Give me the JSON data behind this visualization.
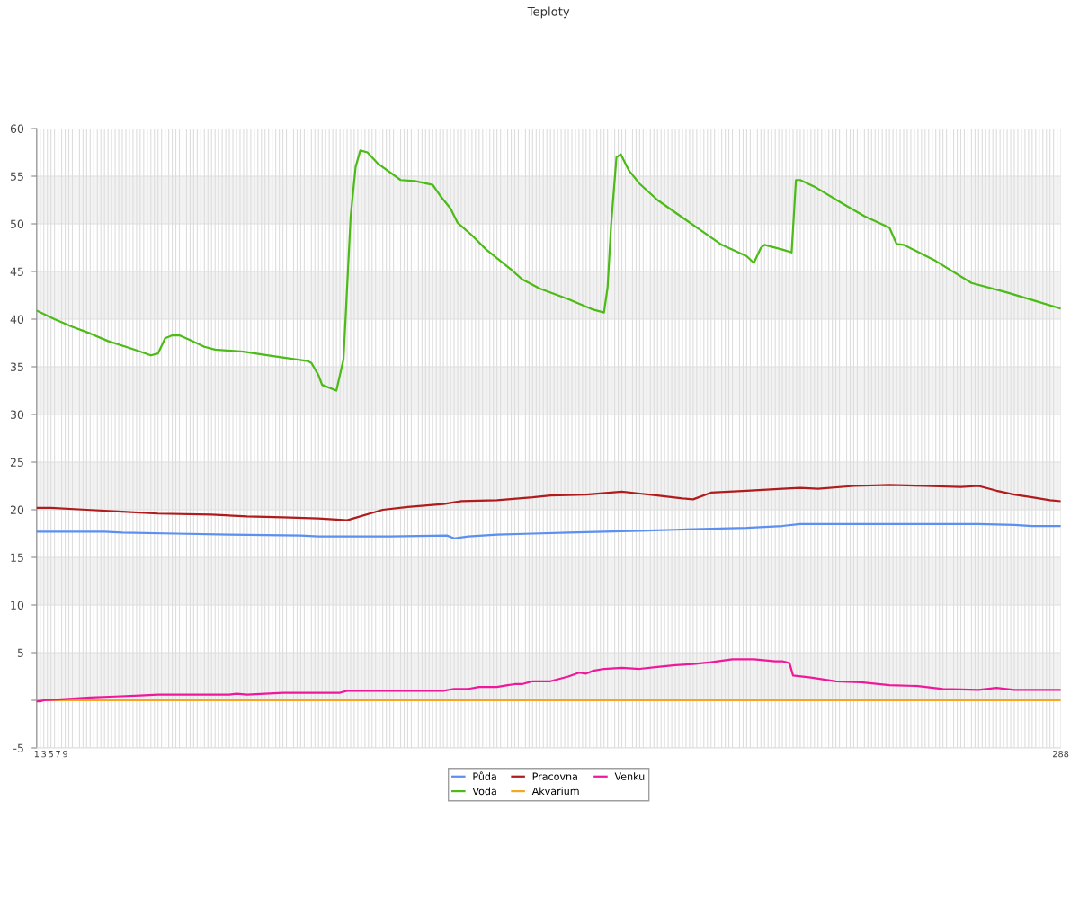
{
  "chart_data": {
    "type": "line",
    "title": "Teploty",
    "xlim": [
      1,
      288
    ],
    "xticks": [
      1,
      {
        "value": 2,
        "label": null
      },
      3,
      {
        "value": 4,
        "label": null
      },
      5,
      {
        "value": 6,
        "label": null
      },
      7,
      {
        "value": 8,
        "label": null
      },
      9,
      {
        "value": 10,
        "label": null
      },
      {
        "value": 11,
        "label": null
      },
      {
        "value": 12,
        "label": null
      },
      {
        "value": 13,
        "label": null
      },
      {
        "value": 14,
        "label": null
      },
      {
        "value": 15,
        "label": null
      },
      {
        "value": 16,
        "label": null
      },
      {
        "value": 17,
        "label": null
      },
      {
        "value": 18,
        "label": null
      },
      {
        "value": 19,
        "label": null
      },
      {
        "value": 20,
        "label": null
      },
      {
        "value": 21,
        "label": null
      },
      {
        "value": 22,
        "label": null
      },
      {
        "value": 23,
        "label": null
      },
      {
        "value": 24,
        "label": null
      },
      {
        "value": 25,
        "label": null
      },
      {
        "value": 26,
        "label": null
      },
      {
        "value": 27,
        "label": null
      },
      {
        "value": 28,
        "label": null
      },
      {
        "value": 29,
        "label": null
      },
      {
        "value": 30,
        "label": null
      },
      {
        "value": 31,
        "label": null
      },
      {
        "value": 32,
        "label": null
      },
      {
        "value": 33,
        "label": null
      },
      {
        "value": 34,
        "label": null
      },
      {
        "value": 35,
        "label": null
      },
      {
        "value": 36,
        "label": null
      },
      {
        "value": 37,
        "label": null
      },
      {
        "value": 38,
        "label": null
      },
      {
        "value": 39,
        "label": null
      },
      {
        "value": 40,
        "label": null
      },
      {
        "value": 41,
        "label": null
      },
      {
        "value": 42,
        "label": null
      },
      {
        "value": 43,
        "label": null
      },
      {
        "value": 44,
        "label": null
      },
      {
        "value": 45,
        "label": null
      },
      {
        "value": 46,
        "label": null
      },
      {
        "value": 47,
        "label": null
      },
      {
        "value": 48,
        "label": null
      },
      {
        "value": 49,
        "label": null
      },
      {
        "value": 50,
        "label": null
      },
      {
        "value": 51,
        "label": null
      },
      {
        "value": 52,
        "label": null
      },
      {
        "value": 53,
        "label": null
      },
      {
        "value": 54,
        "label": null
      },
      {
        "value": 55,
        "label": null
      },
      {
        "value": 56,
        "label": null
      },
      {
        "value": 57,
        "label": null
      },
      {
        "value": 58,
        "label": null
      },
      {
        "value": 59,
        "label": null
      },
      {
        "value": 60,
        "label": null
      },
      {
        "value": 61,
        "label": null
      },
      {
        "value": 62,
        "label": null
      },
      {
        "value": 63,
        "label": null
      },
      {
        "value": 64,
        "label": null
      },
      {
        "value": 65,
        "label": null
      },
      {
        "value": 66,
        "label": null
      },
      {
        "value": 67,
        "label": null
      },
      {
        "value": 68,
        "label": null
      },
      {
        "value": 69,
        "label": null
      },
      {
        "value": 70,
        "label": null
      },
      {
        "value": 71,
        "label": null
      },
      {
        "value": 72,
        "label": null
      },
      {
        "value": 73,
        "label": null
      },
      {
        "value": 74,
        "label": null
      },
      {
        "value": 75,
        "label": null
      },
      {
        "value": 76,
        "label": null
      },
      {
        "value": 77,
        "label": null
      },
      {
        "value": 78,
        "label": null
      },
      {
        "value": 79,
        "label": null
      },
      {
        "value": 80,
        "label": null
      },
      {
        "value": 81,
        "label": null
      },
      {
        "value": 82,
        "label": null
      },
      {
        "value": 83,
        "label": null
      },
      {
        "value": 84,
        "label": null
      },
      {
        "value": 85,
        "label": null
      },
      {
        "value": 86,
        "label": null
      },
      {
        "value": 87,
        "label": null
      },
      {
        "value": 88,
        "label": null
      },
      {
        "value": 89,
        "label": null
      },
      {
        "value": 90,
        "label": null
      },
      {
        "value": 91,
        "label": null
      },
      {
        "value": 92,
        "label": null
      },
      {
        "value": 93,
        "label": null
      },
      {
        "value": 94,
        "label": null
      },
      {
        "value": 95,
        "label": null
      },
      {
        "value": 96,
        "label": null
      },
      {
        "value": 97,
        "label": null
      },
      {
        "value": 98,
        "label": null
      },
      {
        "value": 99,
        "label": null
      },
      {
        "value": 100,
        "label": null
      },
      {
        "value": 101,
        "label": null
      },
      {
        "value": 102,
        "label": null
      },
      {
        "value": 103,
        "label": null
      },
      {
        "value": 104,
        "label": null
      },
      {
        "value": 105,
        "label": null
      },
      {
        "value": 106,
        "label": null
      },
      {
        "value": 107,
        "label": null
      },
      {
        "value": 108,
        "label": null
      },
      {
        "value": 109,
        "label": null
      },
      {
        "value": 110,
        "label": null
      },
      {
        "value": 111,
        "label": null
      },
      {
        "value": 112,
        "label": null
      },
      {
        "value": 113,
        "label": null
      },
      {
        "value": 114,
        "label": null
      },
      {
        "value": 115,
        "label": null
      },
      {
        "value": 116,
        "label": null
      },
      {
        "value": 117,
        "label": null
      },
      {
        "value": 118,
        "label": null
      },
      {
        "value": 119,
        "label": null
      },
      {
        "value": 120,
        "label": null
      },
      {
        "value": 121,
        "label": null
      },
      {
        "value": 122,
        "label": null
      },
      {
        "value": 123,
        "label": null
      },
      {
        "value": 124,
        "label": null
      },
      {
        "value": 125,
        "label": null
      },
      {
        "value": 126,
        "label": null
      },
      {
        "value": 127,
        "label": null
      },
      {
        "value": 128,
        "label": null
      },
      {
        "value": 129,
        "label": null
      },
      {
        "value": 130,
        "label": null
      },
      {
        "value": 131,
        "label": null
      },
      {
        "value": 132,
        "label": null
      },
      {
        "value": 133,
        "label": null
      },
      {
        "value": 134,
        "label": null
      },
      {
        "value": 135,
        "label": null
      },
      {
        "value": 136,
        "label": null
      },
      {
        "value": 137,
        "label": null
      },
      {
        "value": 138,
        "label": null
      },
      {
        "value": 139,
        "label": null
      },
      {
        "value": 140,
        "label": null
      },
      {
        "value": 141,
        "label": null
      },
      {
        "value": 142,
        "label": null
      },
      {
        "value": 143,
        "label": null
      },
      {
        "value": 144,
        "label": null
      },
      {
        "value": 145,
        "label": null
      },
      {
        "value": 146,
        "label": null
      },
      {
        "value": 147,
        "label": null
      },
      {
        "value": 148,
        "label": null
      },
      {
        "value": 149,
        "label": null
      },
      {
        "value": 150,
        "label": null
      },
      {
        "value": 151,
        "label": null
      },
      {
        "value": 152,
        "label": null
      },
      {
        "value": 153,
        "label": null
      },
      {
        "value": 154,
        "label": null
      },
      {
        "value": 155,
        "label": null
      },
      {
        "value": 156,
        "label": null
      },
      {
        "value": 157,
        "label": null
      },
      {
        "value": 158,
        "label": null
      },
      {
        "value": 159,
        "label": null
      },
      {
        "value": 160,
        "label": null
      },
      {
        "value": 161,
        "label": null
      },
      {
        "value": 162,
        "label": null
      },
      {
        "value": 163,
        "label": null
      },
      {
        "value": 164,
        "label": null
      },
      {
        "value": 165,
        "label": null
      },
      {
        "value": 166,
        "label": null
      },
      {
        "value": 167,
        "label": null
      },
      {
        "value": 168,
        "label": null
      },
      {
        "value": 169,
        "label": null
      },
      {
        "value": 170,
        "label": null
      },
      {
        "value": 171,
        "label": null
      },
      {
        "value": 172,
        "label": null
      },
      {
        "value": 173,
        "label": null
      },
      {
        "value": 174,
        "label": null
      },
      {
        "value": 175,
        "label": null
      },
      {
        "value": 176,
        "label": null
      },
      {
        "value": 177,
        "label": null
      },
      {
        "value": 178,
        "label": null
      },
      {
        "value": 179,
        "label": null
      },
      {
        "value": 180,
        "label": null
      },
      {
        "value": 181,
        "label": null
      },
      {
        "value": 182,
        "label": null
      },
      {
        "value": 183,
        "label": null
      },
      {
        "value": 184,
        "label": null
      },
      {
        "value": 185,
        "label": null
      },
      {
        "value": 186,
        "label": null
      },
      {
        "value": 187,
        "label": null
      },
      {
        "value": 188,
        "label": null
      },
      {
        "value": 189,
        "label": null
      },
      {
        "value": 190,
        "label": null
      },
      {
        "value": 191,
        "label": null
      },
      {
        "value": 192,
        "label": null
      },
      {
        "value": 193,
        "label": null
      },
      {
        "value": 194,
        "label": null
      },
      {
        "value": 195,
        "label": null
      },
      {
        "value": 196,
        "label": null
      },
      {
        "value": 197,
        "label": null
      },
      {
        "value": 198,
        "label": null
      },
      {
        "value": 199,
        "label": null
      },
      {
        "value": 200,
        "label": null
      },
      {
        "value": 201,
        "label": null
      },
      {
        "value": 202,
        "label": null
      },
      {
        "value": 203,
        "label": null
      },
      {
        "value": 204,
        "label": null
      },
      {
        "value": 205,
        "label": null
      },
      {
        "value": 206,
        "label": null
      },
      {
        "value": 207,
        "label": null
      },
      {
        "value": 208,
        "label": null
      },
      {
        "value": 209,
        "label": null
      },
      {
        "value": 210,
        "label": null
      },
      {
        "value": 211,
        "label": null
      },
      {
        "value": 212,
        "label": null
      },
      {
        "value": 213,
        "label": null
      },
      {
        "value": 214,
        "label": null
      },
      {
        "value": 215,
        "label": null
      },
      {
        "value": 216,
        "label": null
      },
      {
        "value": 217,
        "label": null
      },
      {
        "value": 218,
        "label": null
      },
      {
        "value": 219,
        "label": null
      },
      {
        "value": 220,
        "label": null
      },
      {
        "value": 221,
        "label": null
      },
      {
        "value": 222,
        "label": null
      },
      {
        "value": 223,
        "label": null
      },
      {
        "value": 224,
        "label": null
      },
      {
        "value": 225,
        "label": null
      },
      {
        "value": 226,
        "label": null
      },
      {
        "value": 227,
        "label": null
      },
      {
        "value": 228,
        "label": null
      },
      {
        "value": 229,
        "label": null
      },
      {
        "value": 230,
        "label": null
      },
      {
        "value": 231,
        "label": null
      },
      {
        "value": 232,
        "label": null
      },
      {
        "value": 233,
        "label": null
      },
      {
        "value": 234,
        "label": null
      },
      {
        "value": 235,
        "label": null
      },
      {
        "value": 236,
        "label": null
      },
      {
        "value": 237,
        "label": null
      },
      {
        "value": 238,
        "label": null
      },
      {
        "value": 239,
        "label": null
      },
      {
        "value": 240,
        "label": null
      },
      {
        "value": 241,
        "label": null
      },
      {
        "value": 242,
        "label": null
      },
      {
        "value": 243,
        "label": null
      },
      {
        "value": 244,
        "label": null
      },
      {
        "value": 245,
        "label": null
      },
      {
        "value": 246,
        "label": null
      },
      {
        "value": 247,
        "label": null
      },
      {
        "value": 248,
        "label": null
      },
      {
        "value": 249,
        "label": null
      },
      {
        "value": 250,
        "label": null
      },
      {
        "value": 251,
        "label": null
      },
      {
        "value": 252,
        "label": null
      },
      {
        "value": 253,
        "label": null
      },
      {
        "value": 254,
        "label": null
      },
      {
        "value": 255,
        "label": null
      },
      {
        "value": 256,
        "label": null
      },
      {
        "value": 257,
        "label": null
      },
      {
        "value": 258,
        "label": null
      },
      {
        "value": 259,
        "label": null
      },
      {
        "value": 260,
        "label": null
      },
      {
        "value": 261,
        "label": null
      },
      {
        "value": 262,
        "label": null
      },
      {
        "value": 263,
        "label": null
      },
      {
        "value": 264,
        "label": null
      },
      {
        "value": 265,
        "label": null
      },
      {
        "value": 266,
        "label": null
      },
      {
        "value": 267,
        "label": null
      },
      {
        "value": 268,
        "label": null
      },
      {
        "value": 269,
        "label": null
      },
      {
        "value": 270,
        "label": null
      },
      {
        "value": 271,
        "label": null
      },
      {
        "value": 272,
        "label": null
      },
      {
        "value": 273,
        "label": null
      },
      {
        "value": 274,
        "label": null
      },
      {
        "value": 275,
        "label": null
      },
      {
        "value": 276,
        "label": null
      },
      {
        "value": 277,
        "label": null
      },
      {
        "value": 278,
        "label": null
      },
      {
        "value": 279,
        "label": null
      },
      {
        "value": 280,
        "label": null
      },
      {
        "value": 281,
        "label": null
      },
      {
        "value": 282,
        "label": null
      },
      {
        "value": 283,
        "label": null
      },
      {
        "value": 284,
        "label": null
      },
      {
        "value": 285,
        "label": null
      },
      {
        "value": 286,
        "label": null
      },
      {
        "value": 287,
        "label": null
      },
      288
    ],
    "ylim": [
      -5,
      60
    ],
    "yticks": [
      -5,
      {
        "value": 0,
        "label": null
      },
      5,
      10,
      15,
      20,
      25,
      30,
      35,
      40,
      45,
      50,
      55,
      60
    ],
    "grid": true,
    "legend": "bottom",
    "bands": [
      {
        "axis": "y",
        "from": 0,
        "to": 5,
        "color": "#f2f2f2"
      },
      {
        "axis": "y",
        "from": 10,
        "to": 15,
        "color": "#f2f2f2"
      },
      {
        "axis": "y",
        "from": 20,
        "to": 25,
        "color": "#f2f2f2"
      },
      {
        "axis": "y",
        "from": 30,
        "to": 35,
        "color": "#f2f2f2"
      },
      {
        "axis": "y",
        "from": 40,
        "to": 45,
        "color": "#f2f2f2"
      },
      {
        "axis": "y",
        "from": 50,
        "to": 55,
        "color": "#f2f2f2"
      }
    ],
    "series": [
      {
        "name": "Půda",
        "color": "#5b8ff0",
        "x": [
          1,
          20,
          25,
          40,
          55,
          75,
          80,
          85,
          90,
          95,
          100,
          116,
          118,
          122,
          130,
          140,
          150,
          160,
          170,
          180,
          190,
          200,
          205,
          210,
          215,
          260,
          265,
          275,
          280,
          288
        ],
        "values": [
          17.7,
          17.7,
          17.6,
          17.5,
          17.4,
          17.3,
          17.2,
          17.2,
          17.2,
          17.2,
          17.2,
          17.3,
          17.0,
          17.2,
          17.4,
          17.5,
          17.6,
          17.7,
          17.8,
          17.9,
          18.0,
          18.1,
          18.2,
          18.3,
          18.5,
          18.5,
          18.5,
          18.4,
          18.3,
          18.3
        ]
      },
      {
        "name": "Voda",
        "color": "#4cbb17",
        "x": [
          1,
          6,
          11,
          16,
          21,
          26,
          30,
          33,
          35,
          37,
          39,
          41,
          44,
          48,
          51,
          59,
          66,
          77,
          78,
          80,
          81,
          85,
          87,
          89,
          90.4,
          91.7,
          93.7,
          96.7,
          103,
          107,
          112,
          114,
          117,
          119,
          123,
          127,
          131,
          134,
          137,
          142,
          150,
          157,
          160,
          161,
          162,
          163.5,
          164.7,
          167,
          170,
          175,
          183,
          193,
          200,
          202,
          204,
          205,
          210,
          212.6,
          213.8,
          215,
          219,
          227,
          233,
          240,
          242,
          244,
          253,
          263,
          273,
          281,
          288
        ],
        "values": [
          40.9,
          40.0,
          39.2,
          38.5,
          37.7,
          37.1,
          36.6,
          36.2,
          36.4,
          38.0,
          38.3,
          38.3,
          37.8,
          37.1,
          36.8,
          36.6,
          36.2,
          35.6,
          35.4,
          34.1,
          33.1,
          32.5,
          35.8,
          50.8,
          56.0,
          57.7,
          57.5,
          56.3,
          54.6,
          54.5,
          54.1,
          53.0,
          51.6,
          50.1,
          48.8,
          47.3,
          46.1,
          45.2,
          44.2,
          43.2,
          42.1,
          41.0,
          40.7,
          43.3,
          49.9,
          57.0,
          57.3,
          55.6,
          54.2,
          52.5,
          50.4,
          47.8,
          46.6,
          45.9,
          47.5,
          47.8,
          47.3,
          47.0,
          54.6,
          54.6,
          53.9,
          52.1,
          50.8,
          49.6,
          47.9,
          47.8,
          46.1,
          43.8,
          42.8,
          41.9,
          41.1
        ]
      },
      {
        "name": "Pracovna",
        "color": "#b01c1c",
        "x": [
          1,
          5,
          15,
          25,
          35,
          50,
          60,
          70,
          80,
          88,
          98,
          105,
          115,
          120,
          130,
          140,
          145,
          155,
          165,
          170,
          175,
          182,
          185,
          190,
          200,
          210,
          215,
          220,
          230,
          240,
          250,
          260,
          265,
          270,
          275,
          280,
          285,
          288
        ],
        "values": [
          20.2,
          20.2,
          20.0,
          19.8,
          19.6,
          19.5,
          19.3,
          19.2,
          19.1,
          18.9,
          20.0,
          20.3,
          20.6,
          20.9,
          21.0,
          21.3,
          21.5,
          21.6,
          21.9,
          21.7,
          21.5,
          21.2,
          21.1,
          21.8,
          22.0,
          22.2,
          22.3,
          22.2,
          22.5,
          22.6,
          22.5,
          22.4,
          22.5,
          22.0,
          21.6,
          21.3,
          21.0,
          20.9
        ]
      },
      {
        "name": "Akvarium",
        "color": "#f5a623",
        "x": [
          1,
          288
        ],
        "values": [
          0,
          0
        ]
      },
      {
        "name": "Venku",
        "color": "#f0189a",
        "x": [
          1,
          2,
          3,
          8,
          12,
          16,
          23,
          30,
          35,
          55,
          57,
          60,
          65,
          70,
          86,
          88,
          115,
          118,
          122,
          125,
          130,
          133,
          135,
          137,
          140,
          145,
          150,
          153,
          155,
          157,
          160,
          165,
          170,
          175,
          180,
          185,
          190,
          196,
          202,
          208,
          210,
          212,
          213,
          218,
          225,
          232,
          240,
          248,
          255,
          265,
          270,
          275,
          280,
          285,
          288
        ],
        "values": [
          -0.1,
          -0.1,
          0,
          0.1,
          0.2,
          0.3,
          0.4,
          0.5,
          0.6,
          0.6,
          0.7,
          0.6,
          0.7,
          0.8,
          0.8,
          1.0,
          1.0,
          1.2,
          1.2,
          1.4,
          1.4,
          1.6,
          1.7,
          1.7,
          2.0,
          2.0,
          2.5,
          2.9,
          2.8,
          3.1,
          3.3,
          3.4,
          3.3,
          3.5,
          3.7,
          3.8,
          4.0,
          4.3,
          4.3,
          4.1,
          4.1,
          3.9,
          2.6,
          2.4,
          2.0,
          1.9,
          1.6,
          1.5,
          1.2,
          1.1,
          1.3,
          1.1,
          1.1,
          1.1,
          1.1
        ]
      }
    ]
  }
}
